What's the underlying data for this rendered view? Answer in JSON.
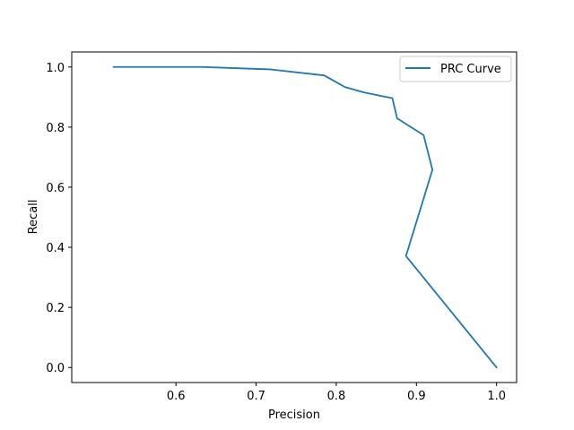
{
  "chart_data": {
    "type": "line",
    "title": "",
    "xlabel": "Precision",
    "ylabel": "Recall",
    "xlim": [
      0.47,
      1.025
    ],
    "ylim": [
      -0.05,
      1.05
    ],
    "xticks": [
      0.6,
      0.7,
      0.8,
      0.9,
      1.0
    ],
    "xtick_labels": [
      "0.6",
      "0.7",
      "0.8",
      "0.9",
      "1.0"
    ],
    "yticks": [
      0.0,
      0.2,
      0.4,
      0.6,
      0.8,
      1.0
    ],
    "ytick_labels": [
      "0.0",
      "0.2",
      "0.4",
      "0.6",
      "0.8",
      "1.0"
    ],
    "grid": false,
    "legend_position": "top-right",
    "series": [
      {
        "name": "PRC Curve",
        "color": "#1f77b4",
        "x": [
          0.522,
          0.632,
          0.718,
          0.785,
          0.811,
          0.835,
          0.87,
          0.876,
          0.909,
          0.92,
          0.887,
          1.0
        ],
        "y": [
          1.0,
          1.0,
          0.992,
          0.972,
          0.933,
          0.915,
          0.896,
          0.829,
          0.773,
          0.658,
          0.371,
          0.0
        ]
      }
    ]
  }
}
